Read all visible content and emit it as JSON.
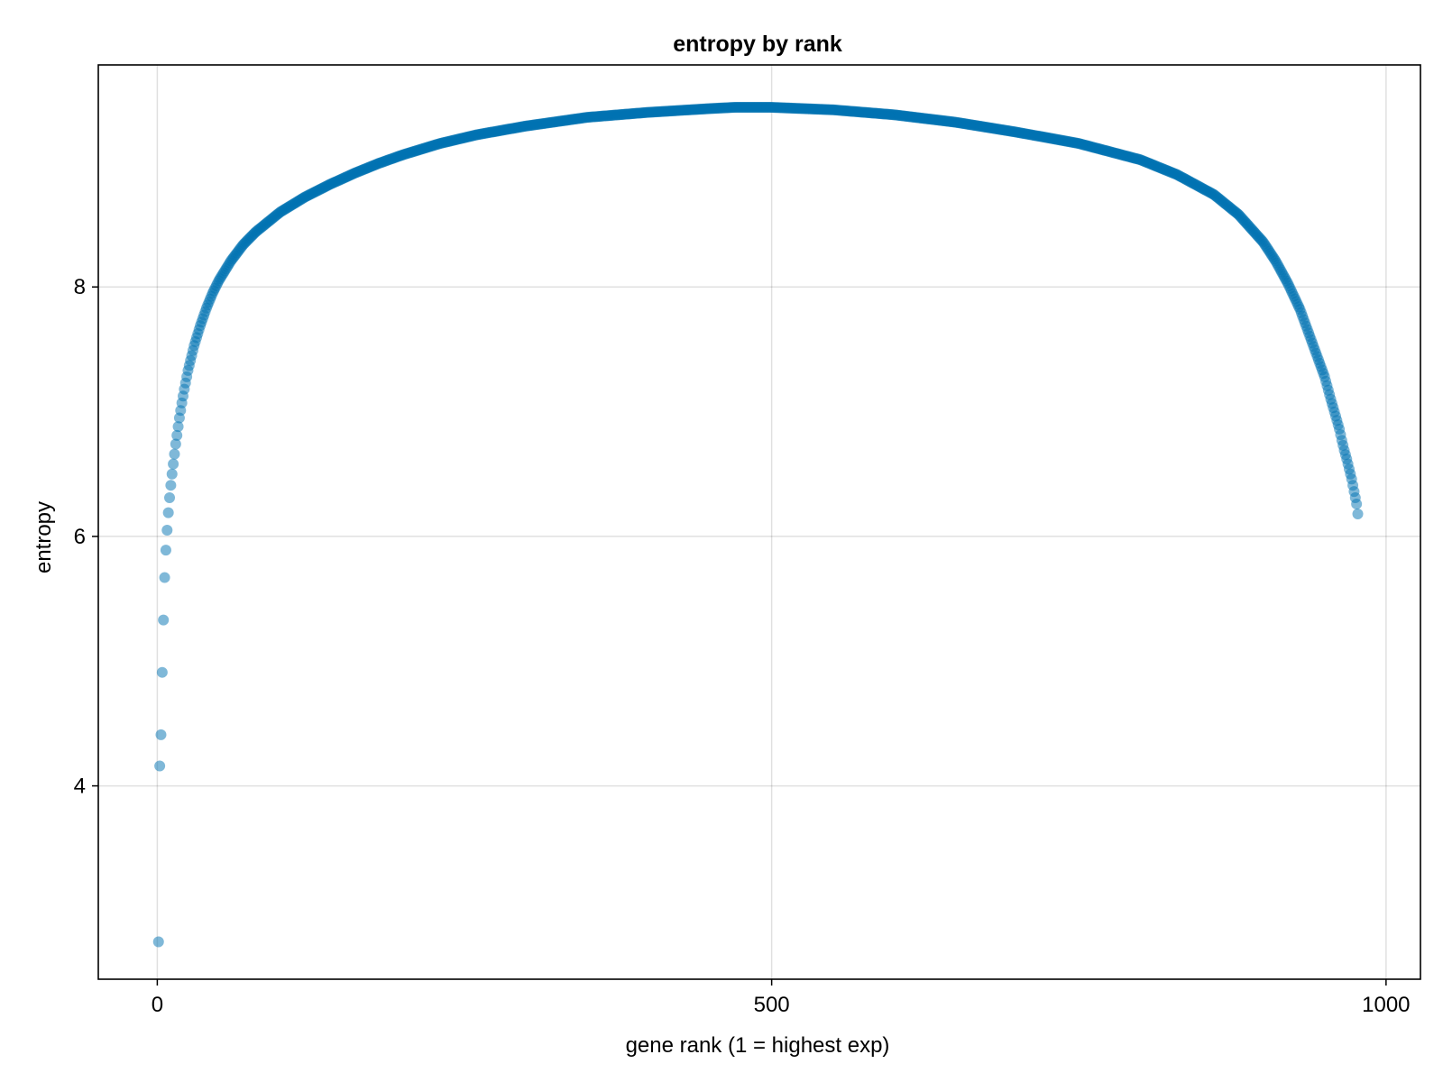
{
  "chart_data": {
    "type": "scatter",
    "title": "entropy by rank",
    "xlabel": "gene rank (1 = highest exp)",
    "ylabel": "entropy",
    "xlim": [
      -48,
      1028
    ],
    "ylim": [
      2.45,
      9.78
    ],
    "xticks": [
      0,
      500,
      1000
    ],
    "xtick_labels": [
      "0",
      "500",
      "1000"
    ],
    "yticks": [
      4,
      6,
      8
    ],
    "ytick_labels": [
      "4",
      "6",
      "8"
    ],
    "grid": true,
    "legend": "none",
    "point_color": "#0072b2",
    "point_opacity": 0.5,
    "n_points": 977,
    "x": [
      1,
      2,
      3,
      4,
      5,
      6,
      7,
      8,
      9,
      10,
      11,
      12,
      13,
      14,
      15,
      16,
      17,
      18,
      19,
      20,
      22,
      25,
      30,
      35,
      40,
      45,
      50,
      60,
      70,
      80,
      90,
      100,
      120,
      140,
      160,
      180,
      200,
      230,
      260,
      300,
      350,
      400,
      450,
      470,
      500,
      550,
      600,
      650,
      700,
      750,
      800,
      830,
      860,
      880,
      900,
      910,
      920,
      930,
      940,
      950,
      955,
      960,
      962,
      964,
      966,
      968,
      970,
      972,
      974,
      976,
      977
    ],
    "y": [
      2.75,
      4.16,
      4.41,
      4.91,
      5.33,
      5.67,
      5.89,
      6.05,
      6.19,
      6.31,
      6.41,
      6.5,
      6.58,
      6.66,
      6.74,
      6.81,
      6.88,
      6.95,
      7.01,
      7.07,
      7.18,
      7.33,
      7.53,
      7.69,
      7.83,
      7.95,
      8.05,
      8.21,
      8.34,
      8.44,
      8.52,
      8.6,
      8.72,
      8.82,
      8.91,
      8.99,
      9.06,
      9.15,
      9.22,
      9.29,
      9.36,
      9.4,
      9.43,
      9.44,
      9.44,
      9.42,
      9.38,
      9.32,
      9.24,
      9.15,
      9.02,
      8.9,
      8.74,
      8.58,
      8.36,
      8.21,
      8.03,
      7.82,
      7.55,
      7.28,
      7.1,
      6.93,
      6.86,
      6.77,
      6.69,
      6.62,
      6.54,
      6.46,
      6.36,
      6.26,
      6.18
    ]
  }
}
